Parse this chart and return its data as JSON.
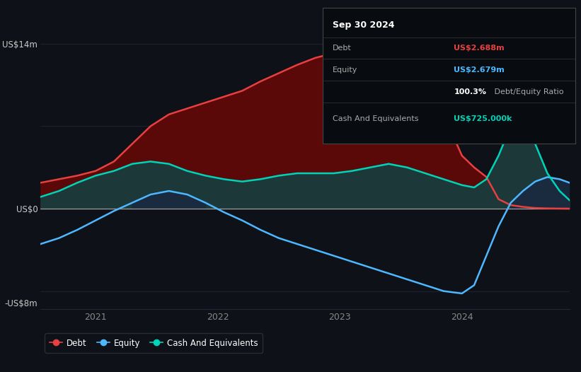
{
  "bg_color": "#0e1117",
  "plot_bg_color": "#0e1117",
  "grid_color": "#252535",
  "zero_line_color": "#cccccc",
  "ylabel_top": "US$14m",
  "ylabel_zero": "US$0",
  "ylabel_bottom": "-US$8m",
  "ylim": [
    -8.5,
    15.5
  ],
  "xlim_start": 2020.55,
  "xlim_end": 2024.88,
  "xticks": [
    2021,
    2022,
    2023,
    2024
  ],
  "debt_color": "#e84040",
  "equity_color": "#4db8ff",
  "cash_color": "#00d4b8",
  "debt_fill_color": "#5a0808",
  "equity_fill_neg_color": "#5a0808",
  "cash_fill_color": "#1a3535",
  "info_box": {
    "date": "Sep 30 2024",
    "debt_label": "Debt",
    "debt_value": "US$2.688m",
    "debt_color": "#e84040",
    "equity_label": "Equity",
    "equity_value": "US$2.679m",
    "equity_color": "#4db8ff",
    "ratio_bold": "100.3%",
    "ratio_rest": " Debt/Equity Ratio",
    "cash_label": "Cash And Equivalents",
    "cash_value": "US$725.000k",
    "cash_color": "#00d4b8",
    "box_bg": "#080c10",
    "box_edge": "#444444",
    "text_color": "#aaaaaa",
    "title_color": "#ffffff"
  },
  "legend": {
    "debt_label": "Debt",
    "equity_label": "Equity",
    "cash_label": "Cash And Equivalents"
  },
  "t": [
    2020.55,
    2020.7,
    2020.85,
    2021.0,
    2021.15,
    2021.3,
    2021.45,
    2021.6,
    2021.75,
    2021.9,
    2022.05,
    2022.2,
    2022.35,
    2022.5,
    2022.65,
    2022.8,
    2022.95,
    2023.1,
    2023.25,
    2023.4,
    2023.55,
    2023.7,
    2023.85,
    2024.0,
    2024.1,
    2024.2,
    2024.3,
    2024.4,
    2024.5,
    2024.6,
    2024.7,
    2024.8,
    2024.88
  ],
  "debt": [
    2.2,
    2.5,
    2.8,
    3.2,
    4.0,
    5.5,
    7.0,
    8.0,
    8.5,
    9.0,
    9.5,
    10.0,
    10.8,
    11.5,
    12.2,
    12.8,
    13.2,
    13.5,
    13.5,
    13.8,
    13.2,
    11.5,
    8.0,
    4.5,
    3.5,
    2.688,
    0.8,
    0.3,
    0.15,
    0.05,
    0.02,
    0.01,
    0.0
  ],
  "equity": [
    -3.0,
    -2.5,
    -1.8,
    -1.0,
    -0.2,
    0.5,
    1.2,
    1.5,
    1.2,
    0.5,
    -0.3,
    -1.0,
    -1.8,
    -2.5,
    -3.0,
    -3.5,
    -4.0,
    -4.5,
    -5.0,
    -5.5,
    -6.0,
    -6.5,
    -7.0,
    -7.2,
    -6.5,
    -4.0,
    -1.5,
    0.5,
    1.5,
    2.3,
    2.679,
    2.5,
    2.2
  ],
  "cash": [
    1.0,
    1.5,
    2.2,
    2.8,
    3.2,
    3.8,
    4.0,
    3.8,
    3.2,
    2.8,
    2.5,
    2.3,
    2.5,
    2.8,
    3.0,
    3.0,
    3.0,
    3.2,
    3.5,
    3.8,
    3.5,
    3.0,
    2.5,
    2.0,
    1.8,
    2.5,
    4.5,
    7.0,
    7.5,
    5.5,
    3.0,
    1.5,
    0.725
  ]
}
